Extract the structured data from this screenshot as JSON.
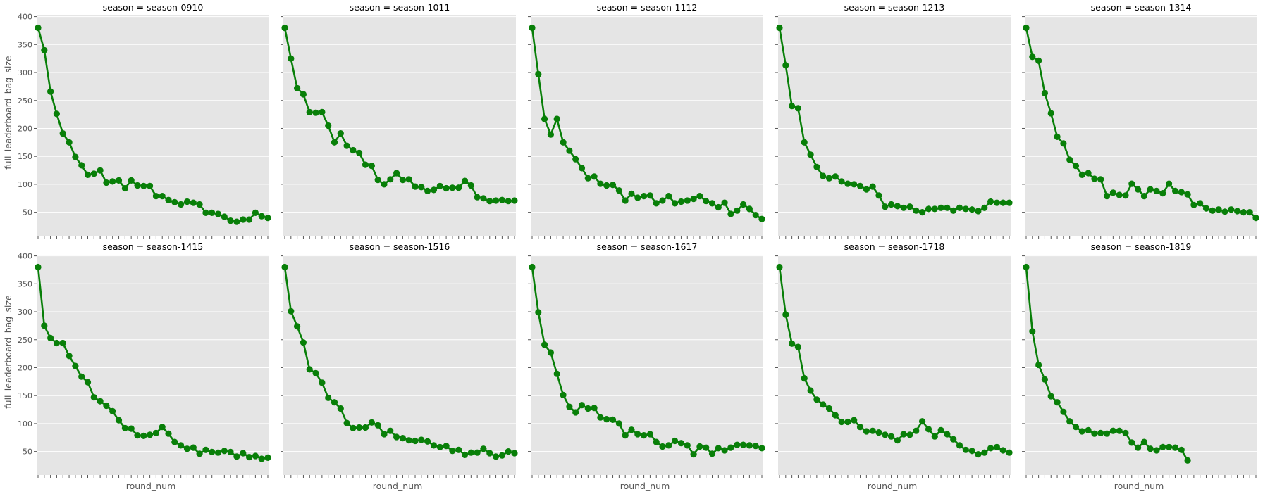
{
  "figure": {
    "xlabel": "round_num",
    "ylabel": "full_leaderboard_bag_size"
  },
  "style": {
    "panel_bg": "#e5e5e5",
    "grid_color": "#ffffff",
    "line_color": "#087f08",
    "tick_color": "#555555"
  },
  "chart_data": {
    "type": "line",
    "xlabel": "round_num",
    "ylabel": "full_leaderboard_bag_size",
    "ylim": [
      8,
      402
    ],
    "yticks": [
      50,
      100,
      150,
      200,
      250,
      300,
      350,
      400
    ],
    "x_range": [
      1,
      38
    ],
    "x_tick_labels_shown": false,
    "grid": true,
    "layout": "2 rows x 5 columns, shared axes",
    "panels": [
      {
        "title": "season = season-0910",
        "values": [
          380,
          340,
          266,
          226,
          191,
          175,
          149,
          134,
          117,
          119,
          125,
          103,
          105,
          107,
          93,
          107,
          98,
          97,
          97,
          79,
          79,
          72,
          68,
          64,
          69,
          67,
          64,
          49,
          49,
          47,
          42,
          35,
          33,
          37,
          37,
          49,
          43,
          40
        ]
      },
      {
        "title": "season = season-1011",
        "values": [
          380,
          325,
          272,
          261,
          229,
          228,
          229,
          205,
          175,
          191,
          169,
          161,
          156,
          135,
          133,
          108,
          100,
          109,
          120,
          108,
          109,
          96,
          95,
          88,
          90,
          97,
          93,
          94,
          94,
          106,
          98,
          77,
          75,
          70,
          71,
          72,
          70,
          71
        ]
      },
      {
        "title": "season = season-1112",
        "values": [
          380,
          297,
          217,
          189,
          217,
          175,
          160,
          145,
          129,
          111,
          114,
          101,
          98,
          99,
          89,
          71,
          83,
          76,
          79,
          80,
          66,
          71,
          79,
          66,
          69,
          71,
          74,
          79,
          70,
          66,
          59,
          67,
          47,
          53,
          64,
          56,
          45,
          38
        ]
      },
      {
        "title": "season = season-1213",
        "values": [
          380,
          313,
          240,
          236,
          175,
          153,
          131,
          115,
          111,
          114,
          105,
          101,
          100,
          97,
          91,
          96,
          80,
          60,
          64,
          61,
          58,
          60,
          53,
          50,
          56,
          56,
          58,
          58,
          53,
          58,
          56,
          55,
          52,
          58,
          69,
          67,
          67,
          67
        ]
      },
      {
        "title": "season = season-1314",
        "values": [
          380,
          328,
          321,
          263,
          227,
          185,
          173,
          144,
          133,
          117,
          120,
          110,
          109,
          79,
          85,
          81,
          80,
          101,
          91,
          79,
          91,
          88,
          84,
          101,
          88,
          86,
          82,
          63,
          66,
          57,
          53,
          55,
          51,
          55,
          52,
          50,
          50,
          40
        ]
      },
      {
        "title": "season = season-1415",
        "values": [
          380,
          275,
          253,
          244,
          244,
          221,
          203,
          184,
          174,
          147,
          140,
          132,
          122,
          106,
          92,
          91,
          79,
          78,
          80,
          83,
          94,
          82,
          67,
          61,
          55,
          57,
          46,
          53,
          49,
          48,
          51,
          49,
          41,
          47,
          40,
          42,
          37,
          39
        ]
      },
      {
        "title": "season = season-1516",
        "values": [
          380,
          301,
          274,
          245,
          197,
          190,
          173,
          146,
          138,
          127,
          101,
          92,
          93,
          93,
          102,
          97,
          81,
          87,
          76,
          74,
          70,
          69,
          71,
          68,
          61,
          58,
          60,
          51,
          53,
          44,
          48,
          48,
          55,
          47,
          41,
          43,
          50,
          47
        ]
      },
      {
        "title": "season = season-1617",
        "values": [
          380,
          299,
          241,
          227,
          189,
          151,
          130,
          120,
          133,
          127,
          128,
          111,
          108,
          107,
          100,
          79,
          89,
          81,
          79,
          81,
          67,
          59,
          61,
          69,
          65,
          61,
          45,
          59,
          57,
          46,
          56,
          52,
          57,
          62,
          62,
          61,
          60,
          56
        ]
      },
      {
        "title": "season = season-1718",
        "values": [
          380,
          295,
          243,
          237,
          181,
          159,
          143,
          134,
          127,
          115,
          103,
          103,
          106,
          94,
          86,
          87,
          84,
          80,
          77,
          70,
          81,
          80,
          87,
          104,
          90,
          77,
          88,
          81,
          72,
          61,
          53,
          51,
          45,
          48,
          56,
          58,
          52,
          48
        ]
      },
      {
        "title": "season = season-1819",
        "values": [
          380,
          265,
          205,
          179,
          149,
          138,
          121,
          104,
          94,
          86,
          88,
          82,
          83,
          82,
          87,
          87,
          83,
          66,
          57,
          67,
          55,
          52,
          58,
          58,
          57,
          53,
          34
        ]
      }
    ]
  }
}
